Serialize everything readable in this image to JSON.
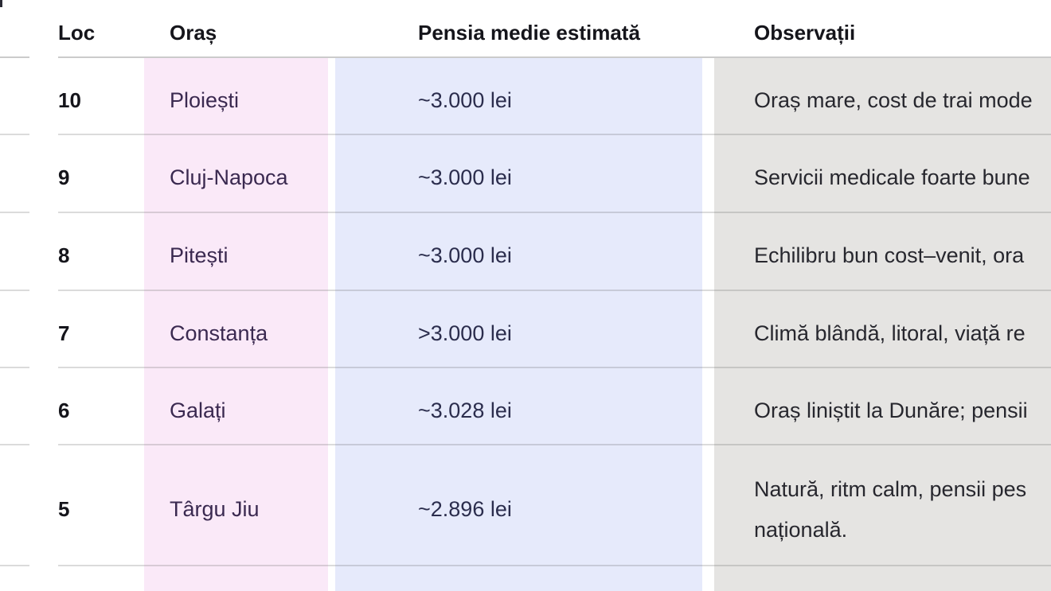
{
  "colors": {
    "oras_highlight": "#fae9f8",
    "pensie_highlight": "#e6eafb",
    "observatii_highlight": "#e5e4e2",
    "header_text": "#15151b",
    "loc_text": "#15151b",
    "oras_text": "#3a2950",
    "pensie_text": "#2b2d4d",
    "observatii_text": "#27272e"
  },
  "table": {
    "columns": [
      {
        "label": "Loc"
      },
      {
        "label": "Oraș"
      },
      {
        "label": "Pensia medie estimată"
      },
      {
        "label": "Observații"
      }
    ],
    "rows": [
      {
        "loc": "10",
        "oras": "Ploiești",
        "pensie": "~3.000 lei",
        "observatii": [
          "Oraș mare, cost de trai mode"
        ]
      },
      {
        "loc": "9",
        "oras": "Cluj-Napoca",
        "pensie": "~3.000 lei",
        "observatii": [
          "Servicii medicale foarte bune"
        ]
      },
      {
        "loc": "8",
        "oras": "Pitești",
        "pensie": "~3.000 lei",
        "observatii": [
          "Echilibru bun cost–venit, ora"
        ]
      },
      {
        "loc": "7",
        "oras": "Constanța",
        "pensie": ">3.000 lei",
        "observatii": [
          "Climă blândă, litoral, viață re"
        ]
      },
      {
        "loc": "6",
        "oras": "Galați",
        "pensie": "~3.028 lei",
        "observatii": [
          "Oraș liniștit la Dunăre; pensii"
        ]
      },
      {
        "loc": "5",
        "oras": "Târgu Jiu",
        "pensie": "~2.896 lei",
        "observatii": [
          "Natură, ritm calm, pensii pes",
          "națională."
        ]
      }
    ]
  }
}
